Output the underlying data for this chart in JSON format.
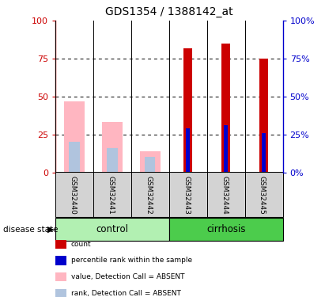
{
  "title": "GDS1354 / 1388142_at",
  "samples": [
    "GSM32440",
    "GSM32441",
    "GSM32442",
    "GSM32443",
    "GSM32444",
    "GSM32445"
  ],
  "group_boundaries": {
    "control": [
      0,
      3
    ],
    "cirrhosis": [
      3,
      6
    ]
  },
  "group_colors": {
    "control": "#b2f0b2",
    "cirrhosis": "#4ccc4c"
  },
  "count_values": [
    0,
    0,
    0,
    82,
    85,
    75
  ],
  "rank_values": [
    0,
    0,
    0,
    29,
    31,
    26
  ],
  "absent_value": [
    47,
    33,
    14,
    0,
    0,
    0
  ],
  "absent_rank": [
    20,
    16,
    10,
    0,
    0,
    0
  ],
  "ylim": [
    0,
    100
  ],
  "yticks": [
    0,
    25,
    50,
    75,
    100
  ],
  "absent_color": "#ffb6c1",
  "absent_rank_color": "#b0c4de",
  "count_color": "#cc0000",
  "rank_color": "#0000cc",
  "left_axis_color": "#cc0000",
  "right_axis_color": "#0000cc",
  "plot_bg": "#ffffff",
  "label_bg": "#d3d3d3",
  "legend_items": [
    [
      "#cc0000",
      "count"
    ],
    [
      "#0000cc",
      "percentile rank within the sample"
    ],
    [
      "#ffb6c1",
      "value, Detection Call = ABSENT"
    ],
    [
      "#b0c4de",
      "rank, Detection Call = ABSENT"
    ]
  ]
}
